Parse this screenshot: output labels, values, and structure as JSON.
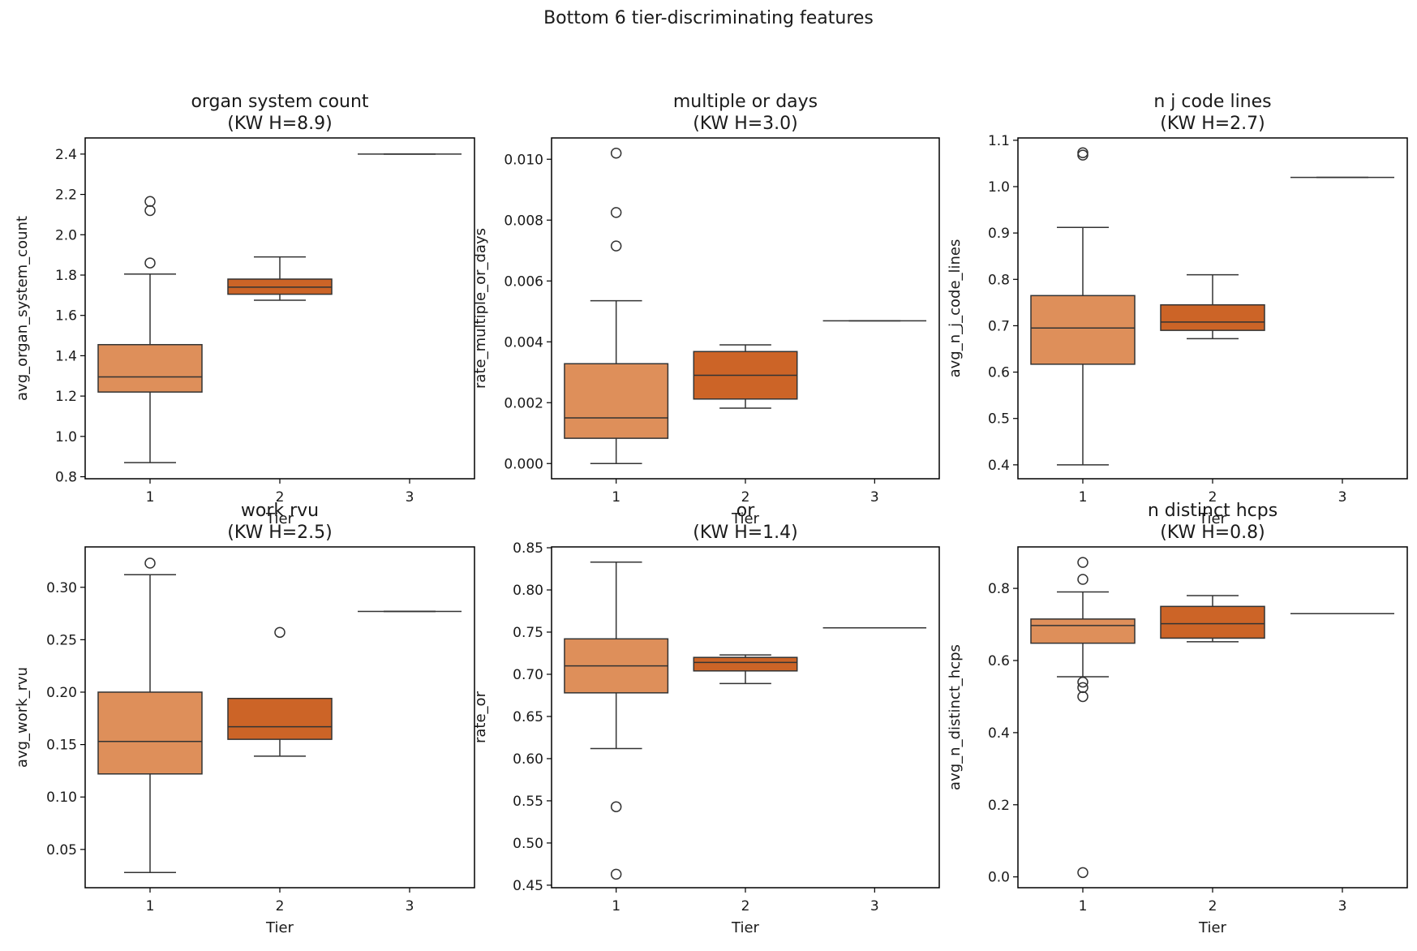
{
  "figure": {
    "suptitle": "Bottom 6 tier-discriminating features"
  },
  "colors": {
    "tier1": "#DE8F5A",
    "tier2": "#CC6427",
    "line": "#333333",
    "axis": "#000000"
  },
  "chart_data": [
    {
      "type": "box",
      "title": "organ system count\n(KW H=8.9)",
      "xlabel": "Tier",
      "ylabel": "avg_organ_system_count",
      "categories": [
        "1",
        "2",
        "3"
      ],
      "ylim": [
        0.79,
        2.48
      ],
      "yticks": [
        0.8,
        1.0,
        1.2,
        1.4,
        1.6,
        1.8,
        2.0,
        2.2,
        2.4
      ],
      "ytick_labels": [
        "0.8",
        "1.0",
        "1.2",
        "1.4",
        "1.6",
        "1.8",
        "2.0",
        "2.2",
        "2.4"
      ],
      "boxes": [
        {
          "tier": "1",
          "whislo": 0.87,
          "q1": 1.22,
          "med": 1.295,
          "q3": 1.455,
          "whishi": 1.805,
          "fliers": [
            1.86,
            2.12,
            2.165
          ]
        },
        {
          "tier": "2",
          "whislo": 1.675,
          "q1": 1.705,
          "med": 1.74,
          "q3": 1.78,
          "whishi": 1.89,
          "fliers": []
        },
        {
          "tier": "3",
          "whislo": 2.4,
          "q1": 2.4,
          "med": 2.4,
          "q3": 2.4,
          "whishi": 2.4,
          "fliers": []
        }
      ]
    },
    {
      "type": "box",
      "title": "multiple or days\n(KW H=3.0)",
      "xlabel": "Tier",
      "ylabel": "rate_multiple_or_days",
      "categories": [
        "1",
        "2",
        "3"
      ],
      "ylim": [
        -0.0005,
        0.0107
      ],
      "yticks": [
        0.0,
        0.002,
        0.004,
        0.006,
        0.008,
        0.01
      ],
      "ytick_labels": [
        "0.000",
        "0.002",
        "0.004",
        "0.006",
        "0.008",
        "0.010"
      ],
      "boxes": [
        {
          "tier": "1",
          "whislo": 0.0,
          "q1": 0.00083,
          "med": 0.0015,
          "q3": 0.00328,
          "whishi": 0.00535,
          "fliers": [
            0.00715,
            0.00825,
            0.0102
          ]
        },
        {
          "tier": "2",
          "whislo": 0.00182,
          "q1": 0.00212,
          "med": 0.0029,
          "q3": 0.00368,
          "whishi": 0.0039,
          "fliers": []
        },
        {
          "tier": "3",
          "whislo": 0.00469,
          "q1": 0.00469,
          "med": 0.00469,
          "q3": 0.00469,
          "whishi": 0.00469,
          "fliers": []
        }
      ]
    },
    {
      "type": "box",
      "title": "n j code lines\n(KW H=2.7)",
      "xlabel": "Tier",
      "ylabel": "avg_n_j_code_lines",
      "categories": [
        "1",
        "2",
        "3"
      ],
      "ylim": [
        0.37,
        1.105
      ],
      "yticks": [
        0.4,
        0.5,
        0.6,
        0.7,
        0.8,
        0.9,
        1.0,
        1.1
      ],
      "ytick_labels": [
        "0.4",
        "0.5",
        "0.6",
        "0.7",
        "0.8",
        "0.9",
        "1.0",
        "1.1"
      ],
      "boxes": [
        {
          "tier": "1",
          "whislo": 0.4,
          "q1": 0.617,
          "med": 0.695,
          "q3": 0.765,
          "whishi": 0.912,
          "fliers": [
            1.068,
            1.073
          ]
        },
        {
          "tier": "2",
          "whislo": 0.672,
          "q1": 0.69,
          "med": 0.708,
          "q3": 0.745,
          "whishi": 0.81,
          "fliers": []
        },
        {
          "tier": "3",
          "whislo": 1.02,
          "q1": 1.02,
          "med": 1.02,
          "q3": 1.02,
          "whishi": 1.02,
          "fliers": []
        }
      ]
    },
    {
      "type": "box",
      "title": "work rvu\n(KW H=2.5)",
      "xlabel": "Tier",
      "ylabel": "avg_work_rvu",
      "categories": [
        "1",
        "2",
        "3"
      ],
      "ylim": [
        0.0135,
        0.3385
      ],
      "yticks": [
        0.05,
        0.1,
        0.15,
        0.2,
        0.25,
        0.3
      ],
      "ytick_labels": [
        "0.05",
        "0.10",
        "0.15",
        "0.20",
        "0.25",
        "0.30"
      ],
      "boxes": [
        {
          "tier": "1",
          "whislo": 0.028,
          "q1": 0.122,
          "med": 0.153,
          "q3": 0.2,
          "whishi": 0.312,
          "fliers": [
            0.323
          ]
        },
        {
          "tier": "2",
          "whislo": 0.139,
          "q1": 0.155,
          "med": 0.167,
          "q3": 0.194,
          "whishi": 0.194,
          "fliers": [
            0.257
          ]
        },
        {
          "tier": "3",
          "whislo": 0.277,
          "q1": 0.277,
          "med": 0.277,
          "q3": 0.277,
          "whishi": 0.277,
          "fliers": []
        }
      ]
    },
    {
      "type": "box",
      "title": "or\n(KW H=1.4)",
      "xlabel": "Tier",
      "ylabel": "rate_or",
      "categories": [
        "1",
        "2",
        "3"
      ],
      "ylim": [
        0.447,
        0.851
      ],
      "yticks": [
        0.45,
        0.5,
        0.55,
        0.6,
        0.65,
        0.7,
        0.75,
        0.8,
        0.85
      ],
      "ytick_labels": [
        "0.45",
        "0.50",
        "0.55",
        "0.60",
        "0.65",
        "0.70",
        "0.75",
        "0.80",
        "0.85"
      ],
      "boxes": [
        {
          "tier": "1",
          "whislo": 0.612,
          "q1": 0.678,
          "med": 0.71,
          "q3": 0.742,
          "whishi": 0.833,
          "fliers": [
            0.543,
            0.463
          ]
        },
        {
          "tier": "2",
          "whislo": 0.689,
          "q1": 0.704,
          "med": 0.714,
          "q3": 0.72,
          "whishi": 0.723,
          "fliers": []
        },
        {
          "tier": "3",
          "whislo": 0.755,
          "q1": 0.755,
          "med": 0.755,
          "q3": 0.755,
          "whishi": 0.755,
          "fliers": []
        }
      ]
    },
    {
      "type": "box",
      "title": "n distinct hcps\n(KW H=0.8)",
      "xlabel": "Tier",
      "ylabel": "avg_n_distinct_hcps",
      "categories": [
        "1",
        "2",
        "3"
      ],
      "ylim": [
        -0.03,
        0.915
      ],
      "yticks": [
        0.0,
        0.2,
        0.4,
        0.6,
        0.8
      ],
      "ytick_labels": [
        "0.0",
        "0.2",
        "0.4",
        "0.6",
        "0.8"
      ],
      "boxes": [
        {
          "tier": "1",
          "whislo": 0.555,
          "q1": 0.648,
          "med": 0.697,
          "q3": 0.715,
          "whishi": 0.79,
          "fliers": [
            0.872,
            0.825,
            0.54,
            0.525,
            0.5,
            0.012
          ]
        },
        {
          "tier": "2",
          "whislo": 0.652,
          "q1": 0.662,
          "med": 0.702,
          "q3": 0.75,
          "whishi": 0.78,
          "fliers": []
        },
        {
          "tier": "3",
          "whislo": 0.73,
          "q1": 0.73,
          "med": 0.73,
          "q3": 0.73,
          "whishi": 0.73,
          "fliers": []
        }
      ]
    }
  ]
}
